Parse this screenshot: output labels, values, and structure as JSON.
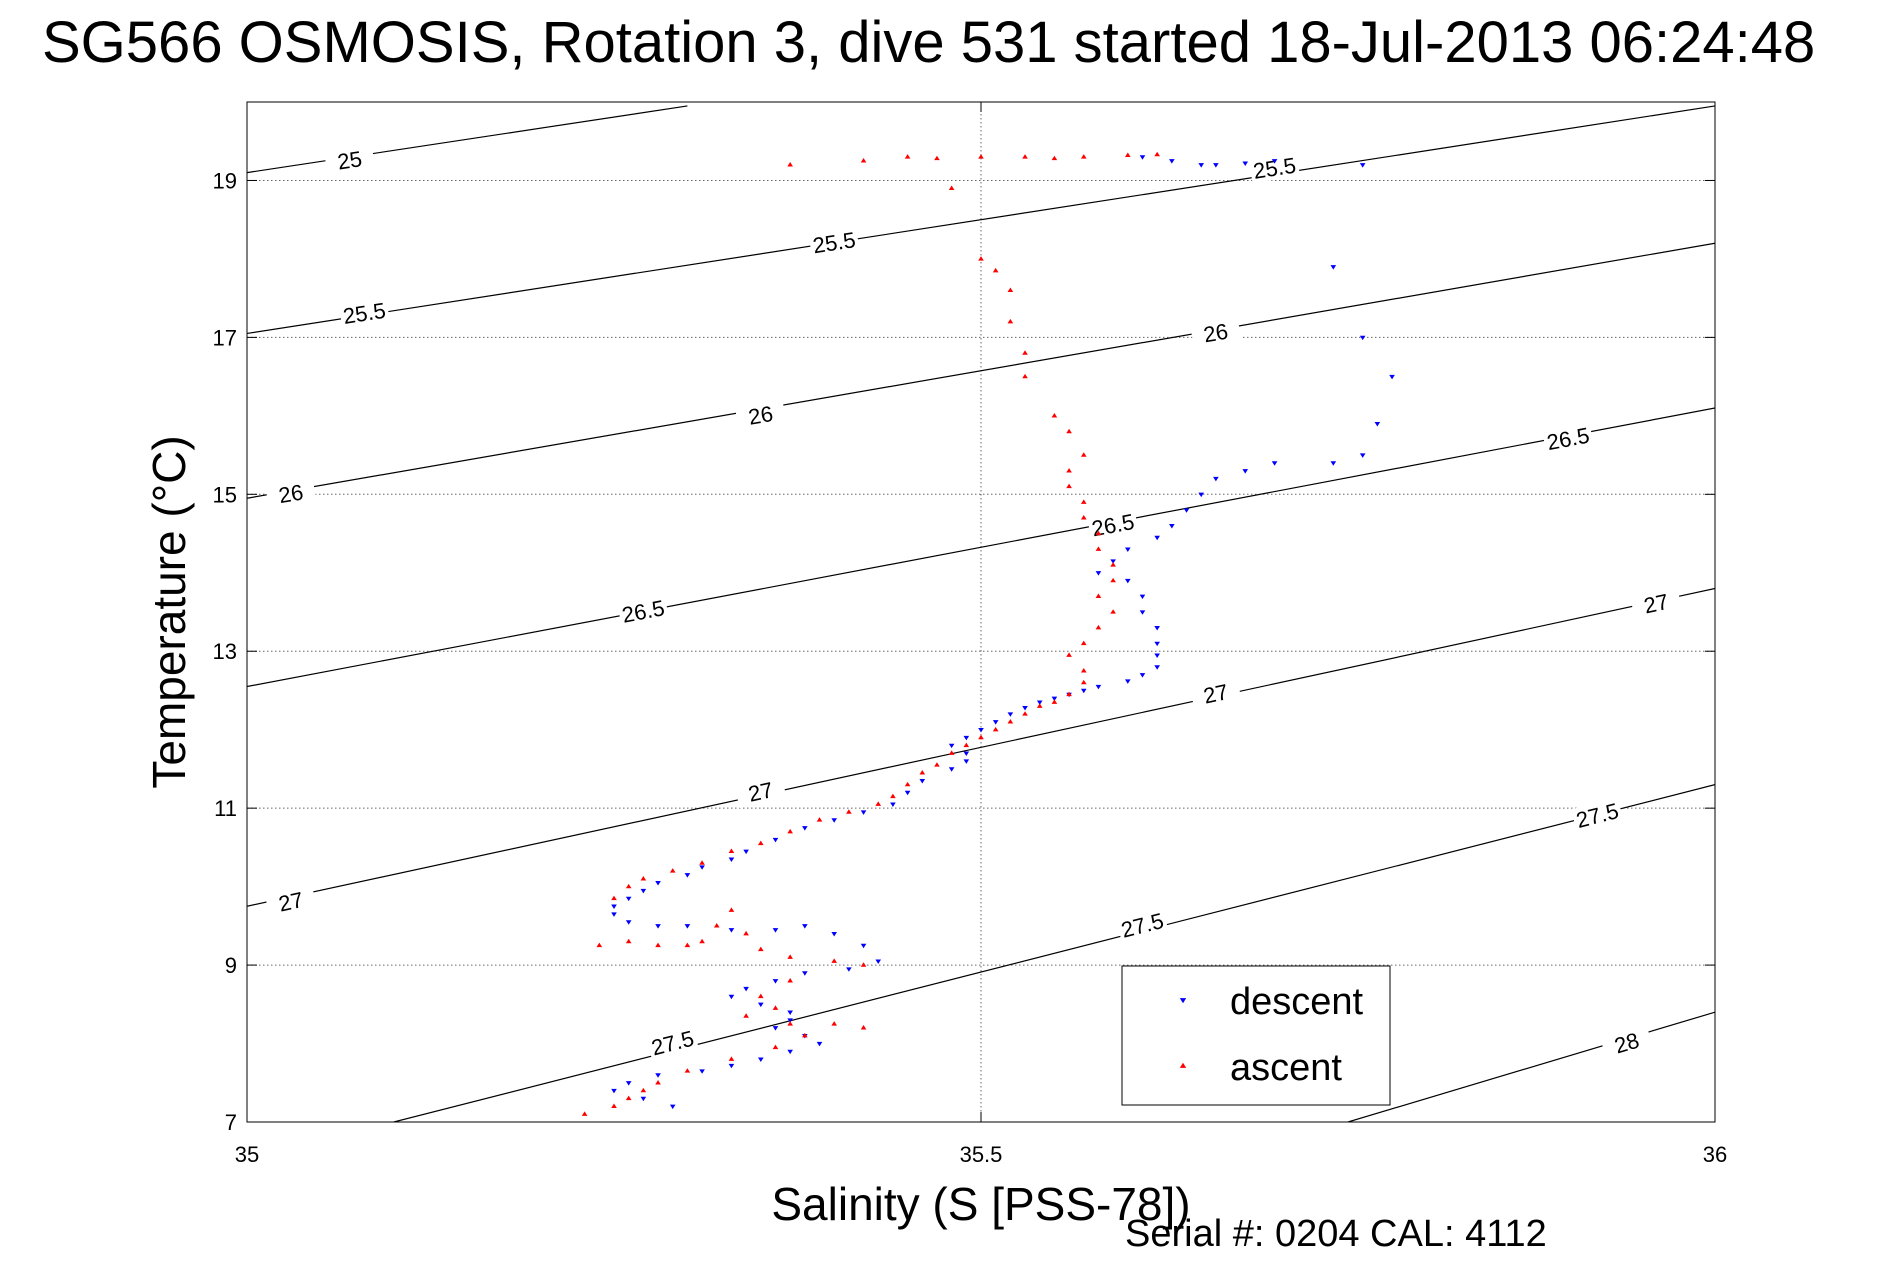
{
  "chart_data": {
    "type": "scatter",
    "title": "SG566 OSMOSIS, Rotation 3, dive 531 started 18-Jul-2013 06:24:48",
    "xlabel": "Salinity (S [PSS-78])",
    "ylabel": "Temperature (°C)",
    "xlim": [
      35,
      36
    ],
    "ylim": [
      7,
      20
    ],
    "x_ticks": [
      {
        "value": 35,
        "label": "35"
      },
      {
        "value": 35.5,
        "label": "35.5"
      },
      {
        "value": 36,
        "label": "36"
      }
    ],
    "y_ticks": [
      {
        "value": 7,
        "label": "7"
      },
      {
        "value": 9,
        "label": "9"
      },
      {
        "value": 11,
        "label": "11"
      },
      {
        "value": 13,
        "label": "13"
      },
      {
        "value": 15,
        "label": "15"
      },
      {
        "value": 17,
        "label": "17"
      },
      {
        "value": 19,
        "label": "19"
      }
    ],
    "grid": true,
    "legend_position": "bottom-right",
    "contours": [
      {
        "levels": [
          {
            "x1": 35,
            "y1": 19.1,
            "x2": 35.3,
            "y2": 19.95
          }
        ],
        "labels": [
          {
            "text": "25",
            "x": 35.07,
            "y": 19.25
          }
        ]
      },
      {
        "levels": [
          {
            "x1": 35,
            "y1": 17.05,
            "x2": 36,
            "y2": 19.95
          }
        ],
        "labels": [
          {
            "text": "25.5",
            "x": 35.08,
            "y": 17.3
          },
          {
            "text": "25.5",
            "x": 35.4,
            "y": 18.2
          },
          {
            "text": "25.5",
            "x": 35.7,
            "y": 19.15
          }
        ]
      },
      {
        "levels": [
          {
            "x1": 35,
            "y1": 14.95,
            "x2": 36,
            "y2": 18.2
          }
        ],
        "labels": [
          {
            "text": "26",
            "x": 35.03,
            "y": 15.0
          },
          {
            "text": "26",
            "x": 35.35,
            "y": 16.0
          },
          {
            "text": "26",
            "x": 35.66,
            "y": 17.05
          }
        ]
      },
      {
        "levels": [
          {
            "x1": 35,
            "y1": 12.55,
            "x2": 36,
            "y2": 16.1
          }
        ],
        "labels": [
          {
            "text": "26.5",
            "x": 35.27,
            "y": 13.5
          },
          {
            "text": "26.5",
            "x": 35.59,
            "y": 14.6
          },
          {
            "text": "26.5",
            "x": 35.9,
            "y": 15.7
          }
        ]
      },
      {
        "levels": [
          {
            "x1": 35,
            "y1": 9.75,
            "x2": 36,
            "y2": 13.8
          }
        ],
        "labels": [
          {
            "text": "27",
            "x": 35.03,
            "y": 9.8
          },
          {
            "text": "27",
            "x": 35.35,
            "y": 11.2
          },
          {
            "text": "27",
            "x": 35.66,
            "y": 12.45
          },
          {
            "text": "27",
            "x": 35.96,
            "y": 13.6
          }
        ]
      },
      {
        "levels": [
          {
            "x1": 35.1,
            "y1": 7.0,
            "x2": 36,
            "y2": 11.3
          }
        ],
        "labels": [
          {
            "text": "27.5",
            "x": 35.29,
            "y": 8.0
          },
          {
            "text": "27.5",
            "x": 35.61,
            "y": 9.5
          },
          {
            "text": "27.5",
            "x": 35.92,
            "y": 10.9
          }
        ]
      },
      {
        "levels": [
          {
            "x1": 35.75,
            "y1": 7.0,
            "x2": 36,
            "y2": 8.4
          }
        ],
        "labels": [
          {
            "text": "28",
            "x": 35.94,
            "y": 8.0
          }
        ]
      }
    ],
    "series": [
      {
        "name": "descent",
        "color": "#0000ff",
        "marker": "triangle-down",
        "points": [
          [
            35.61,
            19.3
          ],
          [
            35.63,
            19.25
          ],
          [
            35.65,
            19.2
          ],
          [
            35.66,
            19.2
          ],
          [
            35.68,
            19.22
          ],
          [
            35.7,
            19.25
          ],
          [
            35.76,
            19.2
          ],
          [
            35.74,
            17.9
          ],
          [
            35.76,
            17.0
          ],
          [
            35.78,
            16.5
          ],
          [
            35.77,
            15.9
          ],
          [
            35.76,
            15.5
          ],
          [
            35.74,
            15.4
          ],
          [
            35.7,
            15.4
          ],
          [
            35.68,
            15.3
          ],
          [
            35.66,
            15.2
          ],
          [
            35.65,
            15.0
          ],
          [
            35.64,
            14.8
          ],
          [
            35.63,
            14.6
          ],
          [
            35.62,
            14.45
          ],
          [
            35.6,
            14.3
          ],
          [
            35.59,
            14.15
          ],
          [
            35.58,
            14.0
          ],
          [
            35.6,
            13.9
          ],
          [
            35.61,
            13.7
          ],
          [
            35.61,
            13.5
          ],
          [
            35.62,
            13.3
          ],
          [
            35.62,
            13.1
          ],
          [
            35.62,
            12.95
          ],
          [
            35.62,
            12.8
          ],
          [
            35.61,
            12.7
          ],
          [
            35.6,
            12.62
          ],
          [
            35.58,
            12.55
          ],
          [
            35.57,
            12.5
          ],
          [
            35.56,
            12.45
          ],
          [
            35.55,
            12.4
          ],
          [
            35.54,
            12.35
          ],
          [
            35.53,
            12.28
          ],
          [
            35.52,
            12.2
          ],
          [
            35.51,
            12.1
          ],
          [
            35.5,
            12.0
          ],
          [
            35.49,
            11.9
          ],
          [
            35.48,
            11.8
          ],
          [
            35.49,
            11.7
          ],
          [
            35.49,
            11.6
          ],
          [
            35.48,
            11.5
          ],
          [
            35.46,
            11.35
          ],
          [
            35.45,
            11.2
          ],
          [
            35.44,
            11.05
          ],
          [
            35.42,
            10.95
          ],
          [
            35.4,
            10.85
          ],
          [
            35.38,
            10.75
          ],
          [
            35.36,
            10.6
          ],
          [
            35.34,
            10.45
          ],
          [
            35.33,
            10.35
          ],
          [
            35.31,
            10.25
          ],
          [
            35.3,
            10.15
          ],
          [
            35.28,
            10.05
          ],
          [
            35.27,
            9.95
          ],
          [
            35.26,
            9.85
          ],
          [
            35.25,
            9.75
          ],
          [
            35.25,
            9.65
          ],
          [
            35.26,
            9.55
          ],
          [
            35.28,
            9.5
          ],
          [
            35.3,
            9.5
          ],
          [
            35.33,
            9.45
          ],
          [
            35.36,
            9.45
          ],
          [
            35.38,
            9.5
          ],
          [
            35.4,
            9.4
          ],
          [
            35.42,
            9.25
          ],
          [
            35.43,
            9.05
          ],
          [
            35.41,
            8.95
          ],
          [
            35.38,
            8.9
          ],
          [
            35.36,
            8.8
          ],
          [
            35.34,
            8.7
          ],
          [
            35.33,
            8.6
          ],
          [
            35.35,
            8.5
          ],
          [
            35.37,
            8.4
          ],
          [
            35.37,
            8.3
          ],
          [
            35.36,
            8.2
          ],
          [
            35.38,
            8.1
          ],
          [
            35.39,
            8.0
          ],
          [
            35.37,
            7.9
          ],
          [
            35.35,
            7.8
          ],
          [
            35.33,
            7.72
          ],
          [
            35.31,
            7.65
          ],
          [
            35.28,
            7.6
          ],
          [
            35.26,
            7.5
          ],
          [
            35.25,
            7.4
          ],
          [
            35.27,
            7.3
          ],
          [
            35.29,
            7.2
          ]
        ]
      },
      {
        "name": "ascent",
        "color": "#ff0000",
        "marker": "triangle-up",
        "points": [
          [
            35.37,
            19.2
          ],
          [
            35.42,
            19.25
          ],
          [
            35.45,
            19.3
          ],
          [
            35.47,
            19.28
          ],
          [
            35.5,
            19.3
          ],
          [
            35.53,
            19.3
          ],
          [
            35.55,
            19.28
          ],
          [
            35.57,
            19.3
          ],
          [
            35.6,
            19.32
          ],
          [
            35.62,
            19.33
          ],
          [
            35.48,
            18.9
          ],
          [
            35.5,
            18.0
          ],
          [
            35.51,
            17.85
          ],
          [
            35.52,
            17.6
          ],
          [
            35.52,
            17.2
          ],
          [
            35.53,
            16.8
          ],
          [
            35.53,
            16.5
          ],
          [
            35.55,
            16.0
          ],
          [
            35.56,
            15.8
          ],
          [
            35.57,
            15.5
          ],
          [
            35.56,
            15.3
          ],
          [
            35.56,
            15.1
          ],
          [
            35.57,
            14.9
          ],
          [
            35.57,
            14.7
          ],
          [
            35.58,
            14.5
          ],
          [
            35.58,
            14.3
          ],
          [
            35.59,
            14.1
          ],
          [
            35.59,
            13.9
          ],
          [
            35.58,
            13.7
          ],
          [
            35.59,
            13.5
          ],
          [
            35.58,
            13.3
          ],
          [
            35.57,
            13.1
          ],
          [
            35.56,
            12.95
          ],
          [
            35.57,
            12.75
          ],
          [
            35.57,
            12.6
          ],
          [
            35.56,
            12.45
          ],
          [
            35.55,
            12.35
          ],
          [
            35.54,
            12.3
          ],
          [
            35.53,
            12.2
          ],
          [
            35.52,
            12.1
          ],
          [
            35.51,
            12.0
          ],
          [
            35.5,
            11.9
          ],
          [
            35.49,
            11.8
          ],
          [
            35.48,
            11.7
          ],
          [
            35.47,
            11.55
          ],
          [
            35.46,
            11.45
          ],
          [
            35.45,
            11.3
          ],
          [
            35.44,
            11.15
          ],
          [
            35.43,
            11.05
          ],
          [
            35.41,
            10.95
          ],
          [
            35.39,
            10.85
          ],
          [
            35.37,
            10.7
          ],
          [
            35.35,
            10.55
          ],
          [
            35.33,
            10.45
          ],
          [
            35.31,
            10.3
          ],
          [
            35.29,
            10.2
          ],
          [
            35.27,
            10.1
          ],
          [
            35.26,
            10.0
          ],
          [
            35.25,
            9.85
          ],
          [
            35.33,
            9.7
          ],
          [
            35.32,
            9.5
          ],
          [
            35.34,
            9.4
          ],
          [
            35.31,
            9.3
          ],
          [
            35.28,
            9.25
          ],
          [
            35.26,
            9.3
          ],
          [
            35.24,
            9.25
          ],
          [
            35.3,
            9.25
          ],
          [
            35.35,
            9.2
          ],
          [
            35.37,
            9.1
          ],
          [
            35.4,
            9.05
          ],
          [
            35.42,
            9.0
          ],
          [
            35.37,
            8.8
          ],
          [
            35.35,
            8.6
          ],
          [
            35.36,
            8.45
          ],
          [
            35.34,
            8.35
          ],
          [
            35.37,
            8.25
          ],
          [
            35.4,
            8.25
          ],
          [
            35.42,
            8.2
          ],
          [
            35.38,
            8.1
          ],
          [
            35.36,
            7.95
          ],
          [
            35.33,
            7.8
          ],
          [
            35.3,
            7.65
          ],
          [
            35.28,
            7.5
          ],
          [
            35.27,
            7.4
          ],
          [
            35.26,
            7.3
          ],
          [
            35.25,
            7.2
          ],
          [
            35.23,
            7.1
          ]
        ]
      }
    ]
  },
  "footer": {
    "serial": "Serial #: 0204  CAL: 4112"
  }
}
